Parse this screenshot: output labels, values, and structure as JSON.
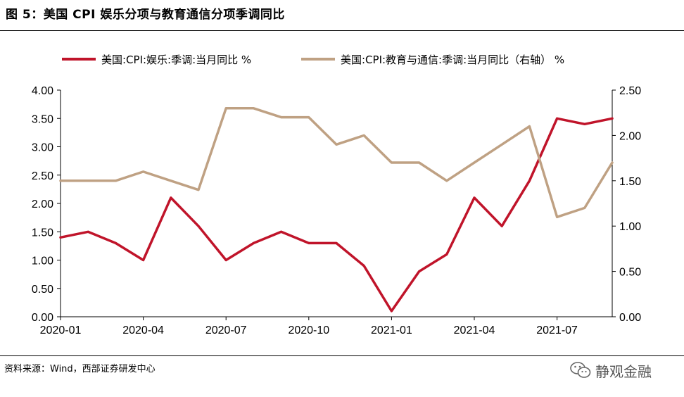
{
  "figure": {
    "title": "图 5：美国 CPI 娱乐分项与教育通信分项季调同比",
    "source": "资料来源：Wind，西部证券研发中心",
    "watermark": "静观金融",
    "watermark_icon": "wechat-icon"
  },
  "chart_data": {
    "type": "line",
    "x": [
      "2020-01",
      "2020-02",
      "2020-03",
      "2020-04",
      "2020-05",
      "2020-06",
      "2020-07",
      "2020-08",
      "2020-09",
      "2020-10",
      "2020-11",
      "2020-12",
      "2021-01",
      "2021-02",
      "2021-03",
      "2021-04",
      "2021-05",
      "2021-06",
      "2021-07",
      "2021-08",
      "2021-09"
    ],
    "x_tick_labels": [
      "2020-01",
      "2020-04",
      "2020-07",
      "2020-10",
      "2021-01",
      "2021-04",
      "2021-07"
    ],
    "y_left": {
      "range": [
        0,
        4
      ],
      "ticks": [
        "0.00",
        "0.50",
        "1.00",
        "1.50",
        "2.00",
        "2.50",
        "3.00",
        "3.50",
        "4.00"
      ]
    },
    "y_right": {
      "range": [
        0,
        2.5
      ],
      "ticks": [
        "0.00",
        "0.50",
        "1.00",
        "1.50",
        "2.00",
        "2.50"
      ]
    },
    "legend_position": "top",
    "grid": false,
    "series": [
      {
        "name": "美国:CPI:娱乐:季调:当月同比 %",
        "axis": "left",
        "color": "#c0142a",
        "values": [
          1.4,
          1.5,
          1.3,
          1.0,
          2.1,
          1.6,
          1.0,
          1.3,
          1.5,
          1.3,
          1.3,
          0.9,
          0.1,
          0.8,
          1.1,
          2.1,
          1.6,
          2.4,
          3.5,
          3.4,
          3.5
        ]
      },
      {
        "name": "美国:CPI:教育与通信:季调:当月同比（右轴） %",
        "axis": "right",
        "color": "#bfa183",
        "values": [
          1.5,
          1.5,
          1.5,
          1.6,
          1.5,
          1.4,
          2.3,
          2.3,
          2.2,
          2.2,
          1.9,
          2.0,
          1.7,
          1.7,
          1.5,
          1.7,
          1.9,
          2.1,
          1.1,
          1.2,
          1.7
        ]
      }
    ]
  }
}
